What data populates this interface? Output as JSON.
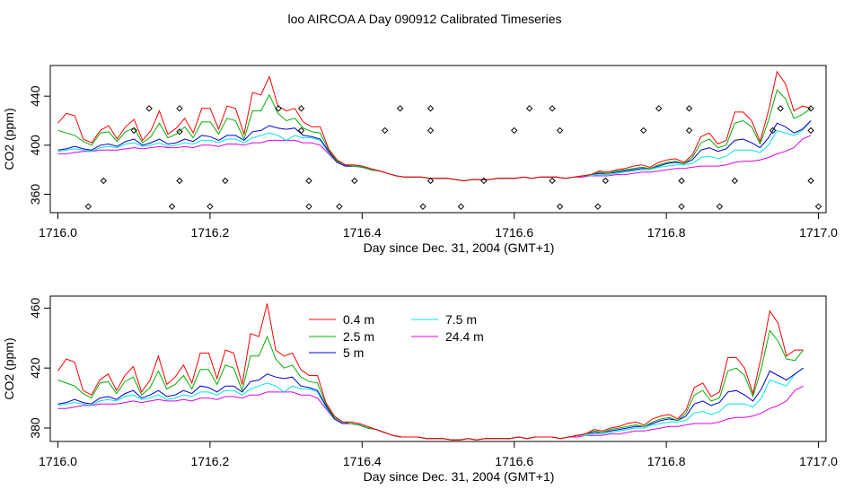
{
  "title": "loo AIRCOA A  Day 090912  Calibrated Timeseries",
  "colors": {
    "0.4 m": "#ff0000",
    "2.5 m": "#00b000",
    "5 m": "#0000cc",
    "7.5 m": "#00e5e5",
    "24.4 m": "#e000e0"
  },
  "chart_data": [
    {
      "type": "line",
      "xlabel": "Day since Dec. 31, 2004 (GMT+1)",
      "ylabel": "CO2 (ppm)",
      "xlim": [
        1715.99,
        1717.01
      ],
      "ylim": [
        345,
        465
      ],
      "xticks": [
        1716.0,
        1716.2,
        1716.4,
        1716.6,
        1716.8,
        1717.0
      ],
      "xtick_labels": [
        "1716.0",
        "1716.2",
        "1716.4",
        "1716.6",
        "1716.8",
        "1717.0"
      ],
      "yticks": [
        360,
        400,
        440
      ],
      "ytick_labels": [
        "360",
        "400",
        "440"
      ],
      "legend": false,
      "series_x_start": 1716.0,
      "series_x_end": 1716.99,
      "series": [
        {
          "name": "0.4 m",
          "values": [
            418,
            426,
            424,
            405,
            402,
            412,
            416,
            405,
            415,
            421,
            404,
            412,
            428,
            409,
            414,
            422,
            410,
            430,
            430,
            413,
            432,
            430,
            409,
            443,
            441,
            456,
            432,
            428,
            430,
            419,
            415,
            415,
            397,
            388,
            384,
            384,
            383,
            381,
            379,
            377,
            375,
            374,
            374,
            374,
            373,
            373,
            373,
            372,
            371,
            372,
            372,
            372,
            373,
            373,
            373,
            374,
            373,
            374,
            374,
            374,
            373,
            374,
            375,
            376,
            379,
            378,
            380,
            381,
            383,
            384,
            382,
            386,
            388,
            389,
            386,
            392,
            407,
            410,
            401,
            404,
            427,
            427,
            420,
            403,
            428,
            460,
            450,
            428,
            432,
            430
          ]
        },
        {
          "name": "2.5 m",
          "values": [
            412,
            410,
            408,
            403,
            400,
            410,
            411,
            403,
            411,
            414,
            402,
            407,
            418,
            406,
            409,
            415,
            406,
            419,
            419,
            409,
            422,
            420,
            405,
            428,
            428,
            441,
            426,
            420,
            422,
            414,
            411,
            410,
            396,
            387,
            384,
            383,
            382,
            380,
            379,
            377,
            375,
            374,
            374,
            374,
            373,
            373,
            373,
            372,
            371,
            372,
            372,
            372,
            373,
            373,
            373,
            374,
            373,
            374,
            374,
            374,
            373,
            374,
            375,
            376,
            378,
            377,
            379,
            380,
            381,
            382,
            381,
            384,
            386,
            387,
            385,
            390,
            402,
            405,
            398,
            400,
            418,
            420,
            415,
            401,
            420,
            445,
            438,
            422,
            425,
            430
          ]
        },
        {
          "name": "5 m",
          "values": [
            396,
            397,
            399,
            397,
            396,
            400,
            401,
            399,
            403,
            405,
            400,
            402,
            405,
            401,
            402,
            405,
            403,
            408,
            407,
            404,
            408,
            408,
            404,
            411,
            412,
            416,
            414,
            413,
            414,
            408,
            407,
            405,
            395,
            386,
            383,
            383,
            382,
            380,
            379,
            377,
            375,
            374,
            374,
            374,
            373,
            373,
            373,
            372,
            371,
            372,
            372,
            372,
            373,
            373,
            373,
            374,
            373,
            374,
            374,
            374,
            373,
            374,
            375,
            376,
            377,
            377,
            378,
            379,
            380,
            381,
            381,
            383,
            385,
            386,
            385,
            388,
            396,
            398,
            395,
            397,
            404,
            405,
            402,
            398,
            406,
            418,
            415,
            410,
            413,
            420
          ]
        },
        {
          "name": "7.5 m",
          "values": [
            395,
            396,
            397,
            396,
            395,
            398,
            399,
            398,
            401,
            402,
            399,
            400,
            402,
            399,
            400,
            402,
            401,
            404,
            404,
            402,
            405,
            405,
            402,
            406,
            408,
            410,
            408,
            404,
            408,
            406,
            406,
            404,
            394,
            386,
            383,
            383,
            382,
            380,
            379,
            377,
            375,
            374,
            374,
            374,
            373,
            373,
            373,
            372,
            371,
            372,
            372,
            372,
            373,
            373,
            373,
            374,
            373,
            374,
            374,
            374,
            373,
            374,
            375,
            375,
            376,
            376,
            377,
            378,
            379,
            380,
            380,
            382,
            383,
            384,
            384,
            385,
            390,
            391,
            389,
            391,
            396,
            396,
            396,
            394,
            400,
            412,
            410,
            408,
            412,
            420
          ]
        },
        {
          "name": "24.4 m",
          "values": [
            393,
            393,
            394,
            395,
            395,
            396,
            396,
            396,
            397,
            398,
            397,
            398,
            399,
            398,
            398,
            399,
            398,
            400,
            400,
            399,
            401,
            401,
            400,
            402,
            402,
            404,
            404,
            404,
            404,
            402,
            402,
            400,
            393,
            386,
            383,
            383,
            382,
            380,
            379,
            377,
            375,
            374,
            374,
            374,
            373,
            373,
            373,
            372,
            371,
            372,
            372,
            372,
            373,
            373,
            373,
            374,
            373,
            374,
            374,
            374,
            373,
            374,
            374,
            375,
            375,
            375,
            376,
            376,
            377,
            378,
            378,
            379,
            380,
            381,
            381,
            382,
            383,
            383,
            383,
            384,
            386,
            387,
            387,
            388,
            390,
            393,
            395,
            398,
            405,
            408
          ]
        }
      ],
      "scatter": {
        "x": [
          1716.04,
          1716.06,
          1716.12,
          1716.1,
          1716.15,
          1716.16,
          1716.16,
          1716.16,
          1716.2,
          1716.22,
          1716.29,
          1716.32,
          1716.33,
          1716.33,
          1716.32,
          1716.37,
          1716.39,
          1716.43,
          1716.45,
          1716.48,
          1716.49,
          1716.49,
          1716.49,
          1716.53,
          1716.56,
          1716.6,
          1716.62,
          1716.65,
          1716.66,
          1716.65,
          1716.66,
          1716.71,
          1716.72,
          1716.77,
          1716.79,
          1716.82,
          1716.82,
          1716.83,
          1716.83,
          1716.87,
          1716.89,
          1716.94,
          1716.95,
          1716.99,
          1716.99,
          1716.99,
          1717.0
        ],
        "y": [
          350,
          371,
          430,
          412,
          350,
          371,
          430,
          411,
          350,
          371,
          430,
          430,
          371,
          350,
          412,
          350,
          371,
          412,
          430,
          350,
          412,
          430,
          371,
          350,
          371,
          412,
          430,
          430,
          412,
          371,
          350,
          350,
          371,
          412,
          430,
          350,
          371,
          430,
          412,
          350,
          371,
          412,
          430,
          430,
          412,
          371,
          350
        ]
      }
    },
    {
      "type": "line",
      "xlabel": "Day since Dec. 31, 2004 (GMT+1)",
      "ylabel": "CO2 (ppm)",
      "xlim": [
        1715.99,
        1717.01
      ],
      "ylim": [
        371,
        468
      ],
      "xticks": [
        1716.0,
        1716.2,
        1716.4,
        1716.6,
        1716.8,
        1717.0
      ],
      "xtick_labels": [
        "1716.0",
        "1716.2",
        "1716.4",
        "1716.6",
        "1716.8",
        "1717.0"
      ],
      "yticks": [
        380,
        420,
        460
      ],
      "ytick_labels": [
        "380",
        "420",
        "460"
      ],
      "legend": true,
      "legend_position": "top-center",
      "legend_entries": [
        "0.4 m",
        "2.5 m",
        "5 m",
        "7.5 m",
        "24.4 m"
      ],
      "series_x_start": 1716.0,
      "series_x_end": 1716.98,
      "series": [
        {
          "name": "0.4 m",
          "values": [
            418,
            426,
            424,
            405,
            402,
            412,
            416,
            405,
            415,
            421,
            404,
            412,
            428,
            409,
            414,
            422,
            410,
            430,
            430,
            413,
            432,
            430,
            409,
            443,
            441,
            463,
            432,
            428,
            430,
            419,
            415,
            415,
            397,
            388,
            384,
            384,
            383,
            381,
            379,
            377,
            375,
            374,
            374,
            374,
            373,
            373,
            373,
            372,
            372,
            373,
            372,
            373,
            373,
            373,
            373,
            374,
            373,
            374,
            374,
            374,
            373,
            374,
            375,
            376,
            379,
            378,
            380,
            381,
            383,
            384,
            382,
            386,
            388,
            389,
            386,
            392,
            407,
            410,
            401,
            404,
            427,
            427,
            420,
            403,
            428,
            458,
            450,
            428,
            432,
            432
          ]
        },
        {
          "name": "2.5 m",
          "values": [
            412,
            410,
            408,
            403,
            400,
            410,
            411,
            403,
            411,
            414,
            402,
            407,
            418,
            406,
            409,
            415,
            406,
            419,
            419,
            409,
            422,
            420,
            405,
            428,
            428,
            441,
            426,
            420,
            422,
            414,
            411,
            410,
            396,
            387,
            384,
            383,
            382,
            380,
            379,
            377,
            375,
            374,
            374,
            374,
            373,
            373,
            373,
            372,
            372,
            373,
            372,
            373,
            373,
            373,
            373,
            374,
            373,
            374,
            374,
            374,
            373,
            374,
            375,
            376,
            378,
            377,
            379,
            380,
            381,
            382,
            381,
            384,
            386,
            387,
            385,
            390,
            402,
            405,
            398,
            400,
            418,
            420,
            415,
            401,
            420,
            445,
            438,
            426,
            425,
            432
          ]
        },
        {
          "name": "5 m",
          "values": [
            396,
            397,
            399,
            397,
            396,
            400,
            401,
            399,
            403,
            405,
            400,
            402,
            405,
            401,
            402,
            405,
            403,
            408,
            407,
            404,
            408,
            408,
            404,
            411,
            412,
            416,
            414,
            413,
            414,
            408,
            407,
            405,
            395,
            386,
            383,
            383,
            382,
            380,
            379,
            377,
            375,
            374,
            374,
            374,
            373,
            373,
            373,
            372,
            372,
            373,
            372,
            373,
            373,
            373,
            373,
            374,
            373,
            374,
            374,
            374,
            373,
            374,
            375,
            376,
            377,
            377,
            378,
            379,
            380,
            381,
            381,
            383,
            385,
            386,
            385,
            388,
            396,
            398,
            395,
            397,
            404,
            405,
            402,
            398,
            406,
            418,
            415,
            412,
            416,
            420
          ]
        },
        {
          "name": "7.5 m",
          "values": [
            395,
            396,
            397,
            396,
            395,
            398,
            399,
            398,
            401,
            402,
            399,
            400,
            402,
            399,
            400,
            402,
            401,
            404,
            404,
            402,
            405,
            405,
            402,
            406,
            408,
            410,
            408,
            404,
            408,
            406,
            406,
            404,
            394,
            386,
            383,
            383,
            382,
            380,
            379,
            377,
            375,
            374,
            374,
            374,
            373,
            373,
            373,
            372,
            372,
            373,
            372,
            373,
            373,
            373,
            373,
            374,
            373,
            374,
            374,
            374,
            373,
            374,
            375,
            375,
            376,
            376,
            377,
            378,
            379,
            380,
            380,
            382,
            383,
            384,
            384,
            385,
            390,
            391,
            389,
            391,
            396,
            396,
            396,
            394,
            400,
            412,
            410,
            408,
            416,
            420
          ]
        },
        {
          "name": "24.4 m",
          "values": [
            393,
            393,
            394,
            395,
            395,
            396,
            396,
            396,
            397,
            398,
            397,
            398,
            399,
            398,
            398,
            399,
            398,
            400,
            400,
            399,
            401,
            401,
            400,
            402,
            402,
            404,
            404,
            404,
            404,
            402,
            402,
            400,
            393,
            386,
            383,
            383,
            382,
            380,
            379,
            377,
            375,
            374,
            374,
            374,
            373,
            373,
            373,
            372,
            372,
            373,
            372,
            373,
            373,
            373,
            373,
            374,
            373,
            374,
            374,
            374,
            373,
            374,
            374,
            375,
            375,
            375,
            376,
            376,
            377,
            378,
            378,
            379,
            380,
            381,
            381,
            382,
            383,
            383,
            383,
            384,
            386,
            387,
            387,
            388,
            390,
            393,
            395,
            398,
            405,
            408
          ]
        }
      ]
    }
  ]
}
